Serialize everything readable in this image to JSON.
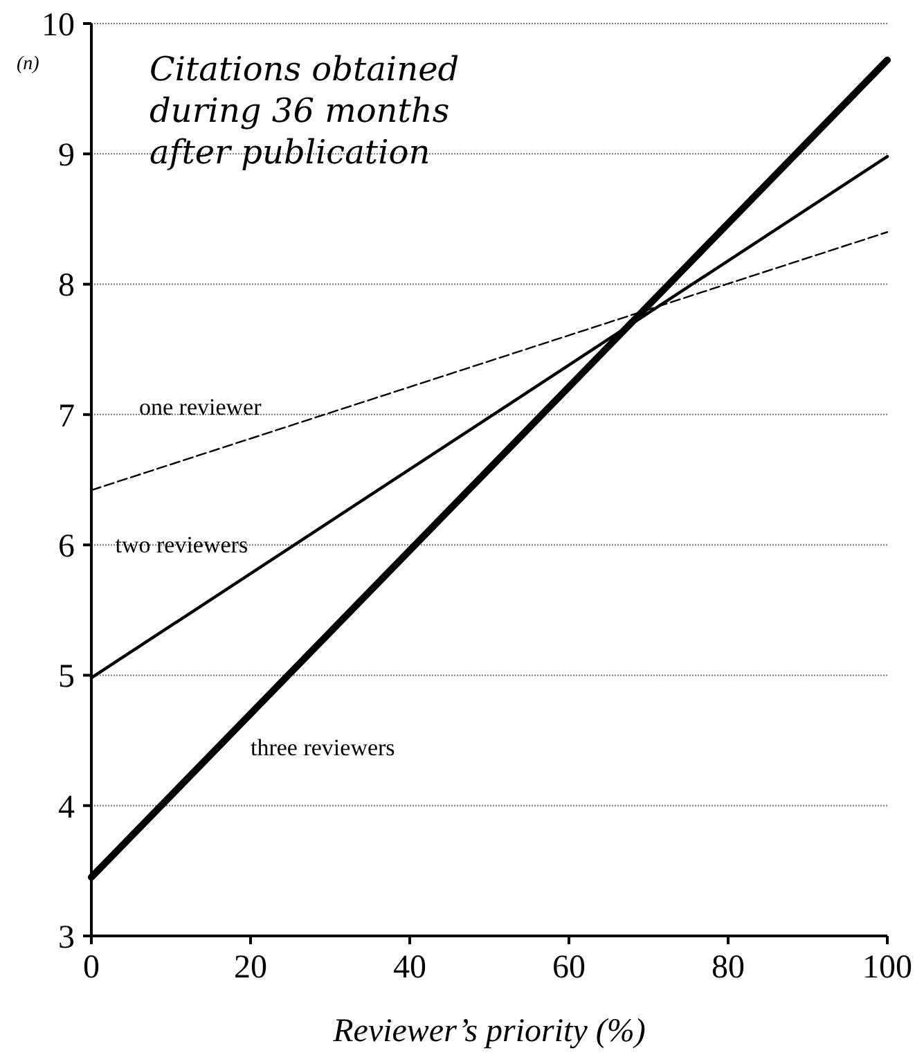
{
  "chart_data": {
    "type": "line",
    "xlabel": "Reviewer’s priority (%)",
    "ylabel": "(n)",
    "annotations": [
      "Citations obtained during 36 months after publication"
    ],
    "x": [
      0,
      100
    ],
    "xlim": [
      0,
      100
    ],
    "xticks": [
      0,
      20,
      40,
      60,
      80,
      100
    ],
    "ylim": [
      3,
      10
    ],
    "yticks": [
      3,
      4,
      5,
      6,
      7,
      8,
      9,
      10
    ],
    "grid": "y",
    "marker": "none",
    "series": [
      {
        "name": "one reviewer",
        "color": "#000000",
        "values": [
          6.42,
          8.4
        ],
        "line_style": "dashed"
      },
      {
        "name": "two reviewers",
        "color": "#000000",
        "values": [
          4.98,
          8.98
        ],
        "line_style": "solid"
      },
      {
        "name": "three reviewers",
        "color": "#000000",
        "values": [
          3.45,
          9.72
        ],
        "line_style": "solid"
      }
    ]
  }
}
